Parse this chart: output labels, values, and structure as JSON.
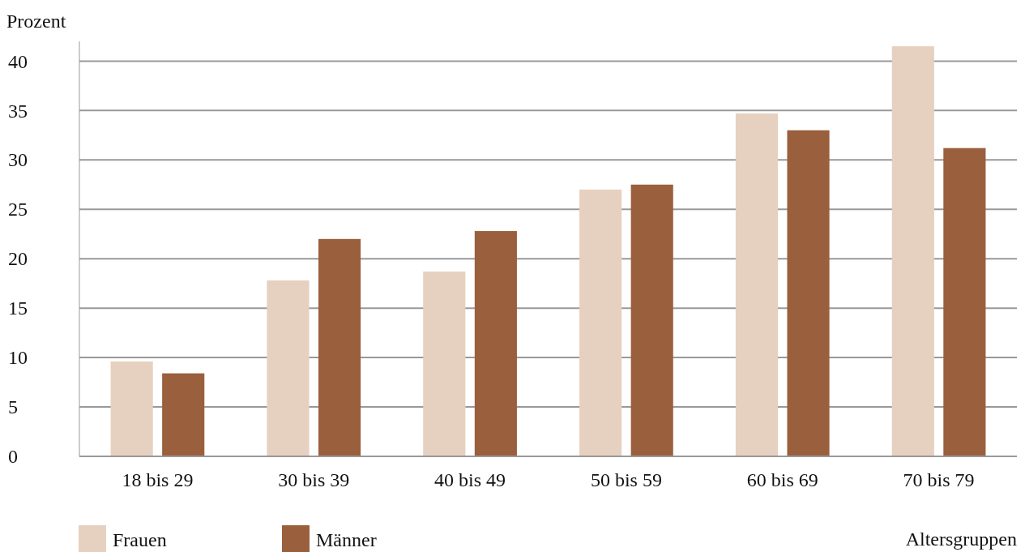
{
  "chart_data": {
    "type": "bar",
    "ylabel": "Prozent",
    "xlabel": "Altersgruppen",
    "categories": [
      "18 bis 29",
      "30 bis 39",
      "40 bis 49",
      "50 bis 59",
      "60 bis 69",
      "70 bis 79"
    ],
    "series": [
      {
        "name": "Frauen",
        "color": "#e6d0bf",
        "values": [
          9.6,
          17.8,
          18.7,
          27.0,
          34.7,
          41.5
        ]
      },
      {
        "name": "Männer",
        "color": "#9a5f3c",
        "values": [
          8.4,
          22.0,
          22.8,
          27.5,
          33.0,
          31.2
        ]
      }
    ],
    "ylim": [
      0,
      42
    ],
    "yticks": [
      0,
      5,
      10,
      15,
      20,
      25,
      30,
      35,
      40
    ],
    "grid": "y",
    "legend": "bottom left"
  }
}
